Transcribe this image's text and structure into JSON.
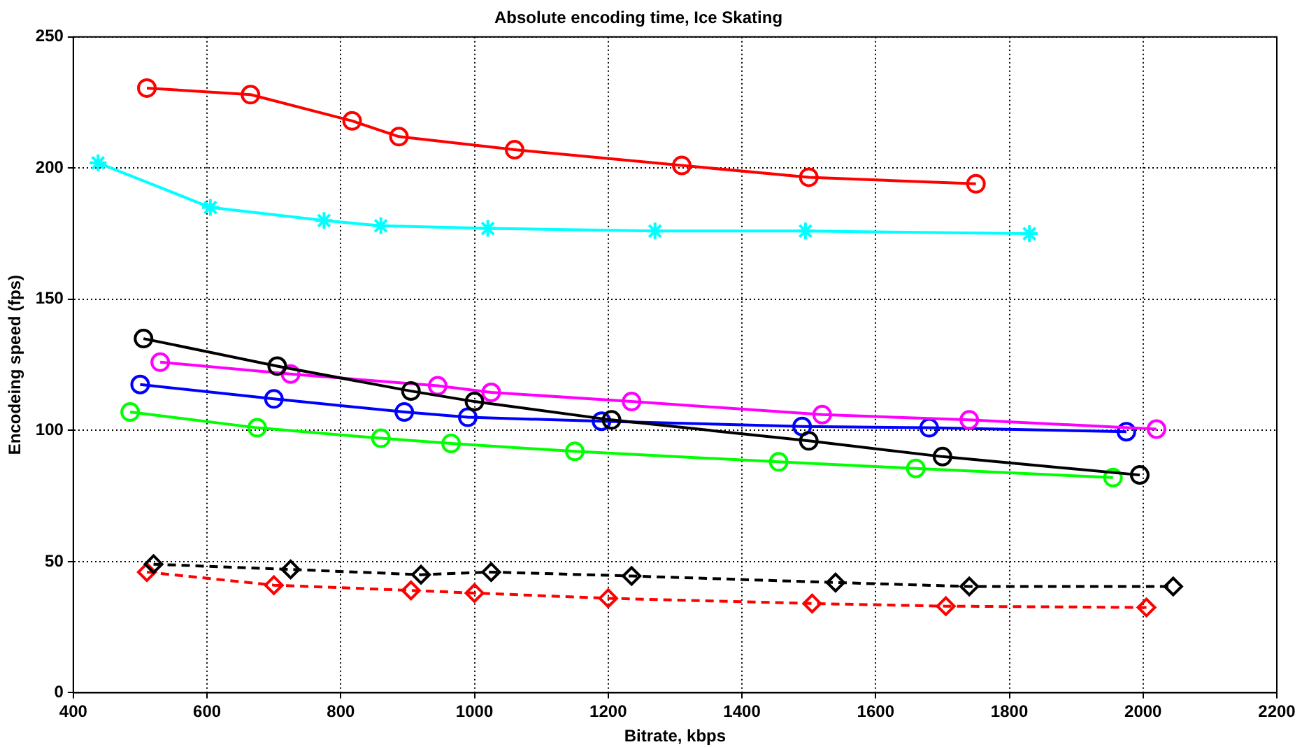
{
  "chart_data": {
    "type": "line",
    "title": "Absolute encoding time, Ice Skating",
    "xlabel": "Bitrate, kbps",
    "ylabel": "Encodeing speed (fps)",
    "xlim": [
      400,
      2200
    ],
    "xticks": [
      400,
      600,
      800,
      1000,
      1200,
      1400,
      1600,
      1800,
      2000,
      2200
    ],
    "ylim": [
      0,
      250
    ],
    "yticks": [
      0,
      50,
      100,
      150,
      200,
      250
    ],
    "grid": true,
    "legend": false,
    "series": [
      {
        "color": "#ff0000",
        "marker": "circle",
        "line_style": "solid",
        "x": [
          510,
          665,
          817,
          887,
          1060,
          1310,
          1500,
          1750
        ],
        "values": [
          230.5,
          228,
          218,
          212,
          207,
          201,
          196.5,
          194
        ]
      },
      {
        "color": "#00ffff",
        "marker": "cross",
        "line_style": "solid",
        "x": [
          437,
          605,
          775,
          860,
          1020,
          1270,
          1495,
          1830
        ],
        "values": [
          202,
          185,
          180,
          178,
          177,
          176,
          176,
          175
        ]
      },
      {
        "color": "#000000",
        "marker": "circle",
        "line_style": "solid",
        "x": [
          505,
          705,
          905,
          1000,
          1205,
          1500,
          1700,
          1995
        ],
        "values": [
          135,
          124.5,
          115,
          111,
          104,
          96,
          90,
          83
        ]
      },
      {
        "color": "#ff00ff",
        "marker": "circle",
        "line_style": "solid",
        "x": [
          530,
          725,
          945,
          1025,
          1235,
          1520,
          1740,
          2020
        ],
        "values": [
          126,
          121.5,
          117,
          114.5,
          111,
          106,
          104,
          100.5
        ]
      },
      {
        "color": "#0000ff",
        "marker": "circle",
        "line_style": "solid",
        "x": [
          500,
          700,
          895,
          990,
          1190,
          1490,
          1680,
          1975
        ],
        "values": [
          117.5,
          112,
          107,
          105,
          103.5,
          101.5,
          101,
          99.5
        ]
      },
      {
        "color": "#00ff00",
        "marker": "circle",
        "line_style": "solid",
        "x": [
          485,
          675,
          860,
          965,
          1150,
          1455,
          1660,
          1955
        ],
        "values": [
          107,
          101,
          97,
          95,
          92,
          88,
          85.5,
          82
        ]
      },
      {
        "color": "#000000",
        "marker": "diamond",
        "line_style": "dashed",
        "x": [
          520,
          725,
          920,
          1025,
          1235,
          1540,
          1740,
          2045
        ],
        "values": [
          49,
          47,
          45,
          46,
          44.5,
          42,
          40.5,
          40.5
        ]
      },
      {
        "color": "#ff0000",
        "marker": "diamond",
        "line_style": "dashed",
        "x": [
          510,
          700,
          905,
          1000,
          1200,
          1505,
          1705,
          2005
        ],
        "values": [
          46,
          41,
          39,
          38,
          36,
          34,
          33,
          32.5
        ]
      }
    ]
  }
}
